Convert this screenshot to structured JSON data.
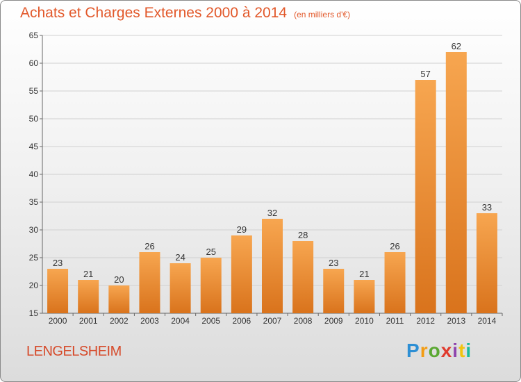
{
  "header": {
    "title": "Achats et Charges Externes 2000 à 2014",
    "subtitle": "(en milliers d'€)"
  },
  "footer": {
    "town": "LENGELSHEIM",
    "logo_text": "Proxiti"
  },
  "colors": {
    "title": "#e2582a",
    "bar_top": "#f7a650",
    "bar_bottom": "#d9731c",
    "grid": "#d0d0d0"
  },
  "chart_data": {
    "type": "bar",
    "title": "Achats et Charges Externes 2000 à 2014",
    "subtitle": "(en milliers d'€)",
    "xlabel": "",
    "ylabel": "",
    "categories": [
      "2000",
      "2001",
      "2002",
      "2003",
      "2004",
      "2005",
      "2006",
      "2007",
      "2008",
      "2009",
      "2010",
      "2011",
      "2012",
      "2013",
      "2014"
    ],
    "values": [
      23,
      21,
      20,
      26,
      24,
      25,
      29,
      32,
      28,
      23,
      21,
      26,
      57,
      62,
      33
    ],
    "ylim": [
      15,
      65
    ],
    "yticks": [
      15,
      20,
      25,
      30,
      35,
      40,
      45,
      50,
      55,
      60,
      65
    ],
    "grid": true
  }
}
